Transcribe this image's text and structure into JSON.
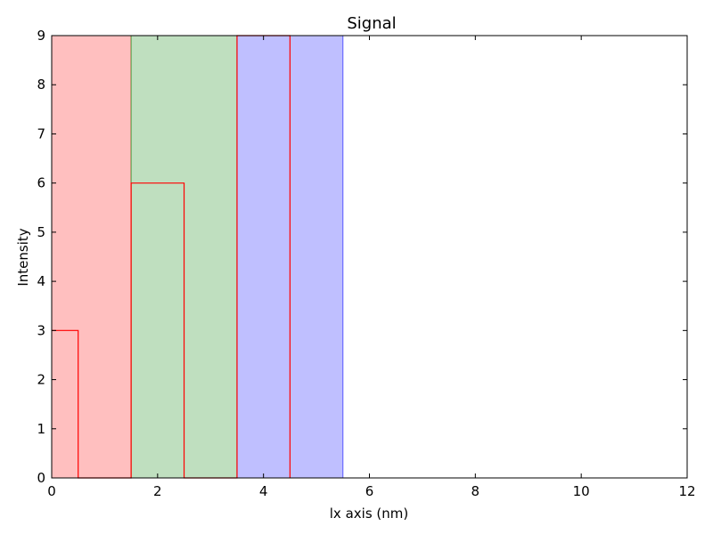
{
  "chart_data": {
    "type": "bar",
    "title": "Signal",
    "xlabel": "lx axis (nm)",
    "ylabel": "Intensity",
    "xlim": [
      0,
      12
    ],
    "ylim": [
      0,
      9
    ],
    "x_ticks": [
      0,
      2,
      4,
      6,
      8,
      10,
      12
    ],
    "y_ticks": [
      0,
      1,
      2,
      3,
      4,
      5,
      6,
      7,
      8,
      9
    ],
    "grid": false,
    "spans": [
      {
        "x_start": 0,
        "x_end": 1.5,
        "color": "#ffbfbf",
        "edge": "#ff0000"
      },
      {
        "x_start": 1.5,
        "x_end": 3.5,
        "color": "#bfdfbf",
        "edge": "#008000"
      },
      {
        "x_start": 3.5,
        "x_end": 5.5,
        "color": "#bfbfff",
        "edge": "#0000ff"
      }
    ],
    "step_outline": {
      "color": "#ff0000",
      "points": [
        [
          0,
          3
        ],
        [
          0.5,
          3
        ],
        [
          0.5,
          0
        ],
        [
          1.5,
          0
        ],
        [
          1.5,
          6
        ],
        [
          2.5,
          6
        ],
        [
          2.5,
          0
        ],
        [
          3.5,
          0
        ],
        [
          3.5,
          9
        ],
        [
          4.5,
          9
        ],
        [
          4.5,
          0
        ]
      ]
    }
  }
}
